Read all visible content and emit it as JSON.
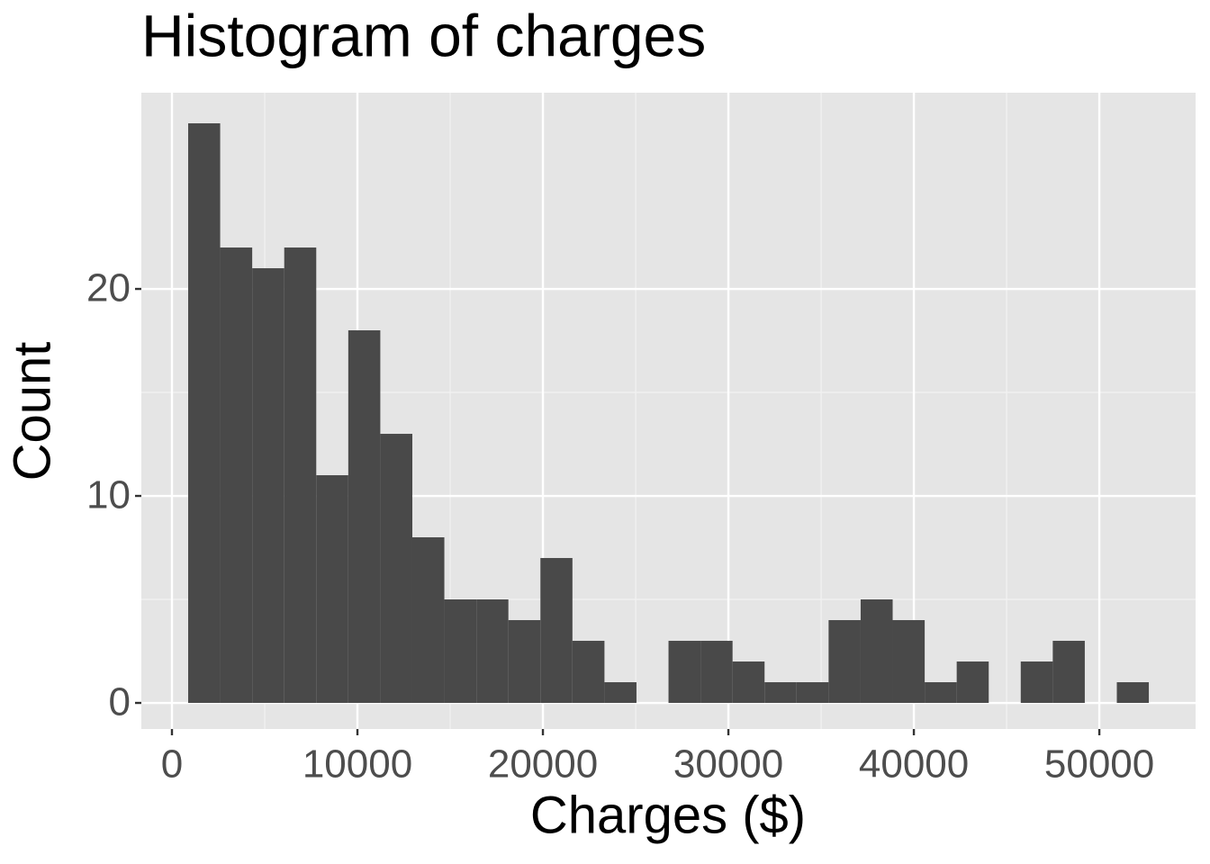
{
  "chart_data": {
    "type": "histogram",
    "title": "Histogram of charges",
    "x_label": "Charges ($)",
    "y_label": "Count",
    "bins": [
      874,
      2600,
      4327,
      6054,
      7780,
      9507,
      11233,
      12960,
      14686,
      16413,
      18139,
      19866,
      21592,
      23319,
      25045,
      26772,
      28498,
      30225,
      31951,
      33678,
      35404,
      37131,
      38857,
      40584,
      42310,
      44037,
      45763,
      47490,
      49216,
      50943,
      52669
    ],
    "values": [
      28,
      22,
      21,
      22,
      11,
      18,
      13,
      8,
      5,
      5,
      4,
      7,
      3,
      1,
      0,
      3,
      3,
      2,
      1,
      1,
      4,
      5,
      4,
      1,
      2,
      0,
      2,
      3,
      0,
      1
    ],
    "color": "#494949",
    "xlim": [
      -1650,
      55190
    ],
    "xticks": [
      0,
      10000,
      20000,
      30000,
      40000,
      50000
    ],
    "ylim": [
      -1.26,
      29.48
    ],
    "yticks": [
      0,
      10,
      20
    ],
    "grid": true
  }
}
